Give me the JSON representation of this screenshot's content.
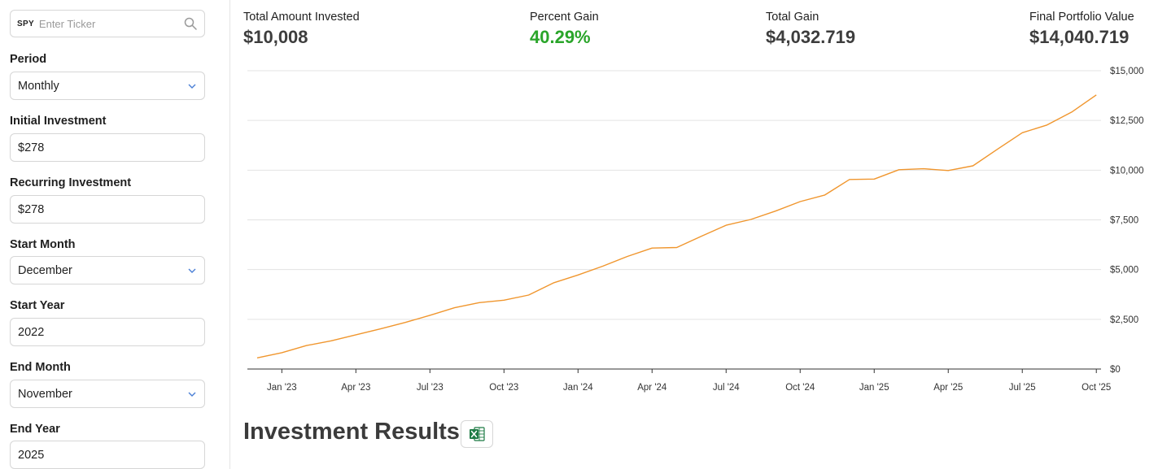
{
  "sidebar": {
    "ticker": {
      "symbol": "SPY",
      "placeholder": "Enter Ticker",
      "icon": "search-icon"
    },
    "fields": [
      {
        "label": "Period",
        "value": "Monthly",
        "type": "select"
      },
      {
        "label": "Initial Investment",
        "value": "$278",
        "type": "input"
      },
      {
        "label": "Recurring Investment",
        "value": "$278",
        "type": "input"
      },
      {
        "label": "Start Month",
        "value": "December",
        "type": "select"
      },
      {
        "label": "Start Year",
        "value": "2022",
        "type": "input"
      },
      {
        "label": "End Month",
        "value": "November",
        "type": "select"
      },
      {
        "label": "End Year",
        "value": "2025",
        "type": "input"
      }
    ]
  },
  "stats": {
    "total_invested": {
      "label": "Total Amount Invested",
      "value": "$10,008"
    },
    "percent_gain": {
      "label": "Percent Gain",
      "value": "40.29%",
      "color": "#2aa52a"
    },
    "total_gain": {
      "label": "Total Gain",
      "value": "$4,032.719"
    },
    "final_value": {
      "label": "Final Portfolio Value",
      "value": "$14,040.719"
    }
  },
  "results": {
    "title": "Investment Results",
    "export_icon": "excel-icon"
  },
  "chart_data": {
    "type": "line",
    "line_color": "#f0962e",
    "grid": true,
    "y_axis_side": "right",
    "ylim": [
      0,
      15000
    ],
    "y_ticks": [
      {
        "value": 0,
        "label": "$0"
      },
      {
        "value": 2500,
        "label": "$2,500"
      },
      {
        "value": 5000,
        "label": "$5,000"
      },
      {
        "value": 7500,
        "label": "$7,500"
      },
      {
        "value": 10000,
        "label": "$10,000"
      },
      {
        "value": 12500,
        "label": "$12,500"
      },
      {
        "value": 15000,
        "label": "$15,000"
      }
    ],
    "x_ticks": [
      "Jan '23",
      "Apr '23",
      "Jul '23",
      "Oct '23",
      "Jan '24",
      "Apr '24",
      "Jul '24",
      "Oct '24",
      "Jan '25",
      "Apr '25",
      "Jul '25",
      "Oct '25"
    ],
    "series": [
      {
        "points": [
          [
            "2022-12",
            560
          ],
          [
            "2023-01",
            820
          ],
          [
            "2023-02",
            1180
          ],
          [
            "2023-03",
            1420
          ],
          [
            "2023-04",
            1720
          ],
          [
            "2023-05",
            2020
          ],
          [
            "2023-06",
            2340
          ],
          [
            "2023-07",
            2700
          ],
          [
            "2023-08",
            3080
          ],
          [
            "2023-09",
            3340
          ],
          [
            "2023-10",
            3460
          ],
          [
            "2023-11",
            3720
          ],
          [
            "2023-12",
            4330
          ],
          [
            "2024-01",
            4730
          ],
          [
            "2024-02",
            5170
          ],
          [
            "2024-03",
            5660
          ],
          [
            "2024-04",
            6080
          ],
          [
            "2024-05",
            6110
          ],
          [
            "2024-06",
            6680
          ],
          [
            "2024-07",
            7230
          ],
          [
            "2024-08",
            7520
          ],
          [
            "2024-09",
            7940
          ],
          [
            "2024-10",
            8420
          ],
          [
            "2024-11",
            8750
          ],
          [
            "2024-12",
            9530
          ],
          [
            "2025-01",
            9550
          ],
          [
            "2025-02",
            10020
          ],
          [
            "2025-03",
            10070
          ],
          [
            "2025-04",
            9980
          ],
          [
            "2025-05",
            10220
          ],
          [
            "2025-06",
            11060
          ],
          [
            "2025-07",
            11880
          ],
          [
            "2025-08",
            12270
          ],
          [
            "2025-09",
            12920
          ],
          [
            "2025-10",
            13780
          ]
        ]
      }
    ]
  }
}
